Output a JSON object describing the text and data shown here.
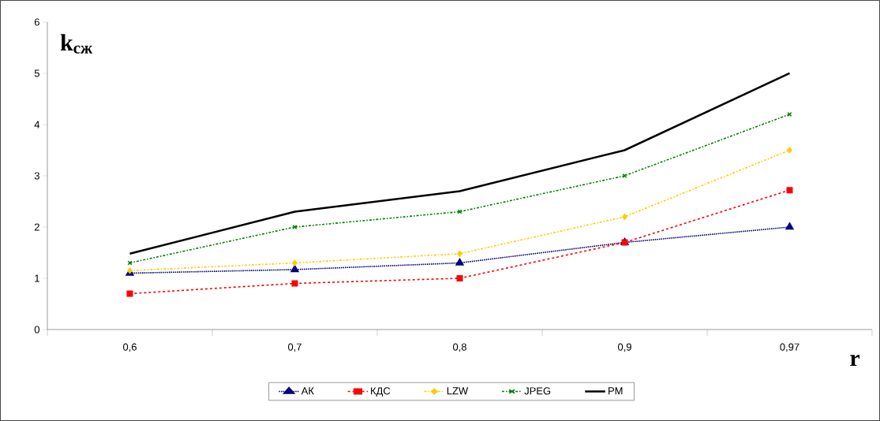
{
  "chart_data": {
    "type": "line",
    "ylabel": "k$_{сж}$",
    "xlabel": "r",
    "categories": [
      "0,6",
      "0,7",
      "0,8",
      "0,9",
      "0,97"
    ],
    "ylim": [
      0,
      6
    ],
    "yticks": [
      0,
      1,
      2,
      3,
      4,
      5,
      6
    ],
    "grid": false,
    "legend": "bottom",
    "series": [
      {
        "name": "АК",
        "color": "#000080",
        "marker": "triangle",
        "line_style": "dotted",
        "values": [
          1.1,
          1.17,
          1.3,
          1.7,
          2.0
        ]
      },
      {
        "name": "КДС",
        "color": "#ff0000",
        "marker": "square",
        "line_style": "dashed",
        "values": [
          0.7,
          0.9,
          1.0,
          1.7,
          2.72
        ]
      },
      {
        "name": "LZW",
        "color": "#ffcc00",
        "marker": "diamond",
        "line_style": "dashdot",
        "values": [
          1.15,
          1.3,
          1.48,
          2.2,
          3.5
        ]
      },
      {
        "name": "JPEG",
        "color": "#008000",
        "marker": "cross",
        "line_style": "dashdot",
        "values": [
          1.3,
          2.0,
          2.3,
          3.0,
          4.2
        ]
      },
      {
        "name": "PM",
        "color": "#000000",
        "marker": "none",
        "line_style": "solid",
        "values": [
          1.48,
          2.3,
          2.7,
          3.5,
          5.0
        ]
      }
    ]
  }
}
